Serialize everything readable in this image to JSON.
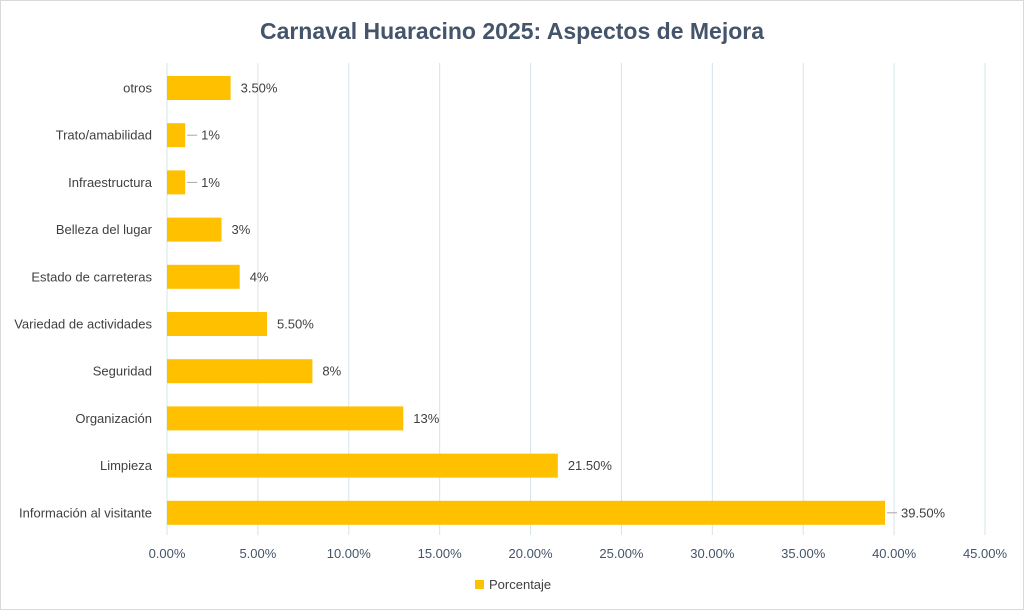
{
  "chart_data": {
    "type": "bar",
    "orientation": "horizontal",
    "title": "Carnaval Huaracino 2025: Aspectos de Mejora",
    "xlabel": "",
    "ylabel": "",
    "xlim": [
      0,
      45
    ],
    "x_ticks": [
      0,
      5,
      10,
      15,
      20,
      25,
      30,
      35,
      40,
      45
    ],
    "x_tick_labels": [
      "0.00%",
      "5.00%",
      "10.00%",
      "15.00%",
      "20.00%",
      "25.00%",
      "30.00%",
      "35.00%",
      "40.00%",
      "45.00%"
    ],
    "grid": true,
    "legend_position": "bottom",
    "categories": [
      "otros",
      "Trato/amabilidad",
      "Infraestructura",
      "Belleza del lugar",
      "Estado de carreteras",
      "Variedad de actividades",
      "Seguridad",
      "Organización",
      "Limpieza",
      "Información al visitante"
    ],
    "series": [
      {
        "name": "Porcentaje",
        "color": "#FFC000",
        "values": [
          3.5,
          1,
          1,
          3,
          4,
          5.5,
          8,
          13,
          21.5,
          39.5
        ],
        "data_labels": [
          "3.50%",
          "1%",
          "1%",
          "3%",
          "4%",
          "5.50%",
          "8%",
          "13%",
          "21.50%",
          "39.50%"
        ]
      }
    ],
    "colors": {
      "title": "#44546A",
      "text": "#404040",
      "axis_text": "#44546A",
      "grid": "#D6E4EA",
      "leader": "#A6A6A6"
    }
  }
}
